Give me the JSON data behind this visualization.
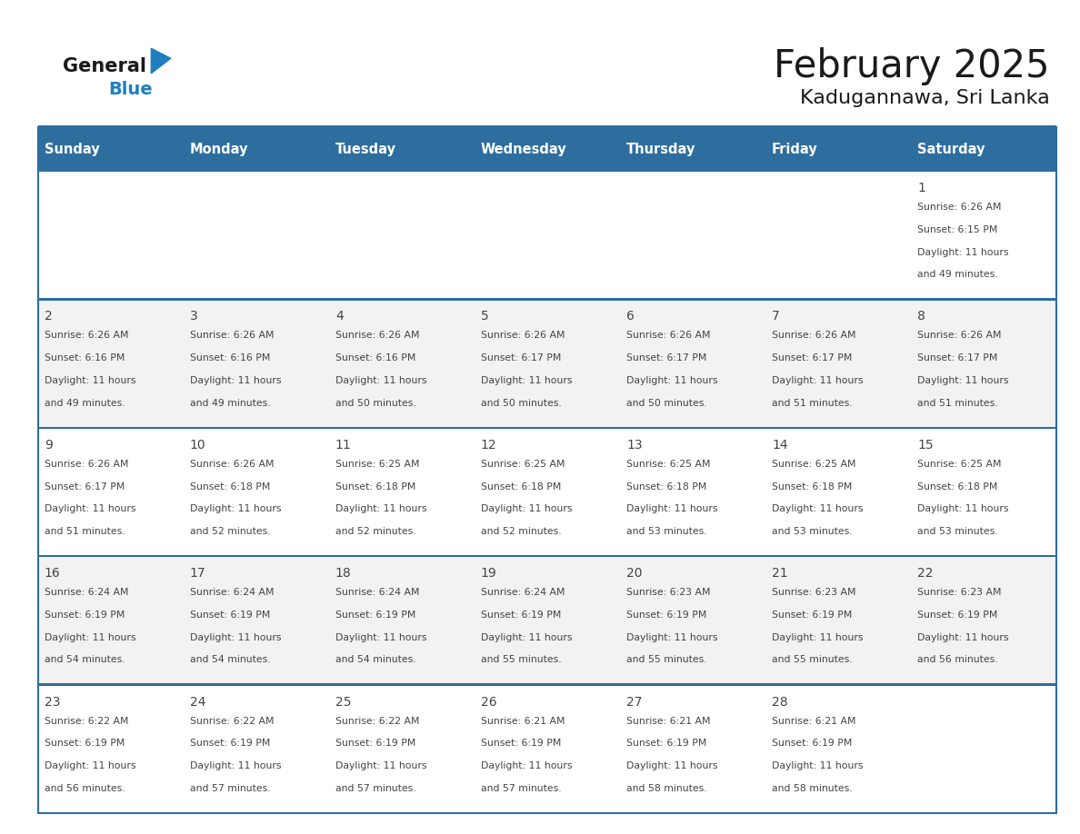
{
  "title": "February 2025",
  "subtitle": "Kadugannawa, Sri Lanka",
  "header_bg": "#2E6E9E",
  "header_text_color": "#FFFFFF",
  "days_of_week": [
    "Sunday",
    "Monday",
    "Tuesday",
    "Wednesday",
    "Thursday",
    "Friday",
    "Saturday"
  ],
  "cell_bg_white": "#FFFFFF",
  "cell_bg_light": "#F2F2F2",
  "border_color": "#2E6E9E",
  "text_color": "#444444",
  "logo_general_color": "#1A1A1A",
  "logo_blue_color": "#1E7FC0",
  "calendar": [
    [
      null,
      null,
      null,
      null,
      null,
      null,
      {
        "day": 1,
        "sunrise": "6:26 AM",
        "sunset": "6:15 PM",
        "daylight": "11 hours",
        "daylight2": "and 49 minutes."
      }
    ],
    [
      {
        "day": 2,
        "sunrise": "6:26 AM",
        "sunset": "6:16 PM",
        "daylight": "11 hours",
        "daylight2": "and 49 minutes."
      },
      {
        "day": 3,
        "sunrise": "6:26 AM",
        "sunset": "6:16 PM",
        "daylight": "11 hours",
        "daylight2": "and 49 minutes."
      },
      {
        "day": 4,
        "sunrise": "6:26 AM",
        "sunset": "6:16 PM",
        "daylight": "11 hours",
        "daylight2": "and 50 minutes."
      },
      {
        "day": 5,
        "sunrise": "6:26 AM",
        "sunset": "6:17 PM",
        "daylight": "11 hours",
        "daylight2": "and 50 minutes."
      },
      {
        "day": 6,
        "sunrise": "6:26 AM",
        "sunset": "6:17 PM",
        "daylight": "11 hours",
        "daylight2": "and 50 minutes."
      },
      {
        "day": 7,
        "sunrise": "6:26 AM",
        "sunset": "6:17 PM",
        "daylight": "11 hours",
        "daylight2": "and 51 minutes."
      },
      {
        "day": 8,
        "sunrise": "6:26 AM",
        "sunset": "6:17 PM",
        "daylight": "11 hours",
        "daylight2": "and 51 minutes."
      }
    ],
    [
      {
        "day": 9,
        "sunrise": "6:26 AM",
        "sunset": "6:17 PM",
        "daylight": "11 hours",
        "daylight2": "and 51 minutes."
      },
      {
        "day": 10,
        "sunrise": "6:26 AM",
        "sunset": "6:18 PM",
        "daylight": "11 hours",
        "daylight2": "and 52 minutes."
      },
      {
        "day": 11,
        "sunrise": "6:25 AM",
        "sunset": "6:18 PM",
        "daylight": "11 hours",
        "daylight2": "and 52 minutes."
      },
      {
        "day": 12,
        "sunrise": "6:25 AM",
        "sunset": "6:18 PM",
        "daylight": "11 hours",
        "daylight2": "and 52 minutes."
      },
      {
        "day": 13,
        "sunrise": "6:25 AM",
        "sunset": "6:18 PM",
        "daylight": "11 hours",
        "daylight2": "and 53 minutes."
      },
      {
        "day": 14,
        "sunrise": "6:25 AM",
        "sunset": "6:18 PM",
        "daylight": "11 hours",
        "daylight2": "and 53 minutes."
      },
      {
        "day": 15,
        "sunrise": "6:25 AM",
        "sunset": "6:18 PM",
        "daylight": "11 hours",
        "daylight2": "and 53 minutes."
      }
    ],
    [
      {
        "day": 16,
        "sunrise": "6:24 AM",
        "sunset": "6:19 PM",
        "daylight": "11 hours",
        "daylight2": "and 54 minutes."
      },
      {
        "day": 17,
        "sunrise": "6:24 AM",
        "sunset": "6:19 PM",
        "daylight": "11 hours",
        "daylight2": "and 54 minutes."
      },
      {
        "day": 18,
        "sunrise": "6:24 AM",
        "sunset": "6:19 PM",
        "daylight": "11 hours",
        "daylight2": "and 54 minutes."
      },
      {
        "day": 19,
        "sunrise": "6:24 AM",
        "sunset": "6:19 PM",
        "daylight": "11 hours",
        "daylight2": "and 55 minutes."
      },
      {
        "day": 20,
        "sunrise": "6:23 AM",
        "sunset": "6:19 PM",
        "daylight": "11 hours",
        "daylight2": "and 55 minutes."
      },
      {
        "day": 21,
        "sunrise": "6:23 AM",
        "sunset": "6:19 PM",
        "daylight": "11 hours",
        "daylight2": "and 55 minutes."
      },
      {
        "day": 22,
        "sunrise": "6:23 AM",
        "sunset": "6:19 PM",
        "daylight": "11 hours",
        "daylight2": "and 56 minutes."
      }
    ],
    [
      {
        "day": 23,
        "sunrise": "6:22 AM",
        "sunset": "6:19 PM",
        "daylight": "11 hours",
        "daylight2": "and 56 minutes."
      },
      {
        "day": 24,
        "sunrise": "6:22 AM",
        "sunset": "6:19 PM",
        "daylight": "11 hours",
        "daylight2": "and 57 minutes."
      },
      {
        "day": 25,
        "sunrise": "6:22 AM",
        "sunset": "6:19 PM",
        "daylight": "11 hours",
        "daylight2": "and 57 minutes."
      },
      {
        "day": 26,
        "sunrise": "6:21 AM",
        "sunset": "6:19 PM",
        "daylight": "11 hours",
        "daylight2": "and 57 minutes."
      },
      {
        "day": 27,
        "sunrise": "6:21 AM",
        "sunset": "6:19 PM",
        "daylight": "11 hours",
        "daylight2": "and 58 minutes."
      },
      {
        "day": 28,
        "sunrise": "6:21 AM",
        "sunset": "6:19 PM",
        "daylight": "11 hours",
        "daylight2": "and 58 minutes."
      },
      null
    ]
  ]
}
